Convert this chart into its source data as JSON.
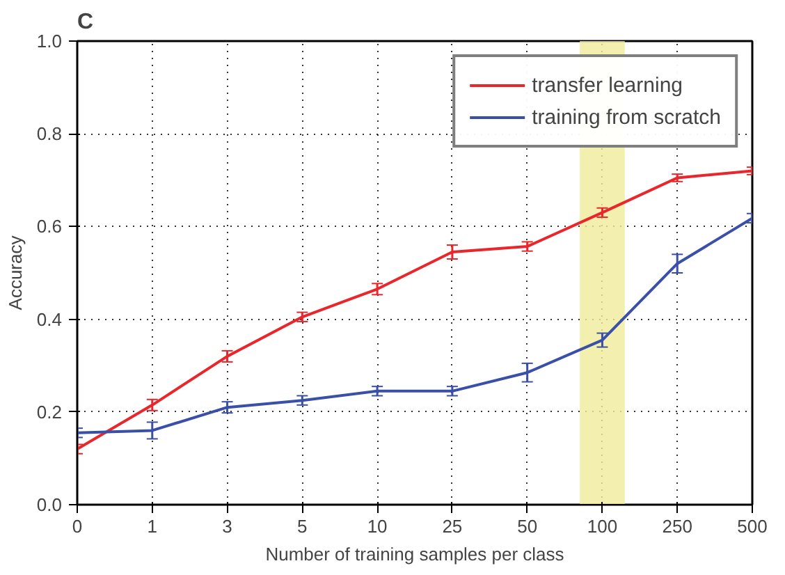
{
  "chart_data": {
    "type": "line",
    "title": "C",
    "xlabel": "Number of training samples per class",
    "ylabel": "Accuracy",
    "categories": [
      "0",
      "1",
      "3",
      "5",
      "10",
      "25",
      "50",
      "100",
      "250",
      "500"
    ],
    "series": [
      {
        "name": "transfer learning",
        "color": "#e8262b",
        "values": [
          0.12,
          0.215,
          0.32,
          0.405,
          0.465,
          0.545,
          0.557,
          0.63,
          0.705,
          0.72
        ],
        "errors": [
          0.01,
          0.012,
          0.012,
          0.01,
          0.012,
          0.015,
          0.01,
          0.01,
          0.008,
          0.008
        ]
      },
      {
        "name": "training from scratch",
        "color": "#3a4fa8",
        "values": [
          0.155,
          0.16,
          0.21,
          0.225,
          0.245,
          0.245,
          0.285,
          0.355,
          0.52,
          0.618
        ],
        "errors": [
          0.01,
          0.018,
          0.012,
          0.01,
          0.01,
          0.01,
          0.02,
          0.015,
          0.02,
          0.01
        ]
      }
    ],
    "bands": [
      {
        "axis": "x",
        "from": "100",
        "to": "100",
        "color": "#f0eb9a"
      }
    ],
    "ylim": [
      0.0,
      1.0
    ],
    "yticks": [
      {
        "value": 0,
        "label": "0.0"
      },
      {
        "value": 0.2,
        "label": "0.2"
      },
      {
        "value": 0.4,
        "label": "0.4"
      },
      {
        "value": 0.6,
        "label": "0.6"
      },
      {
        "value": 0.8,
        "label": "0.8"
      },
      {
        "value": 1,
        "label": "1.0"
      }
    ],
    "grid": true,
    "legend": "top right",
    "marker": "none",
    "line_style": "solid"
  }
}
